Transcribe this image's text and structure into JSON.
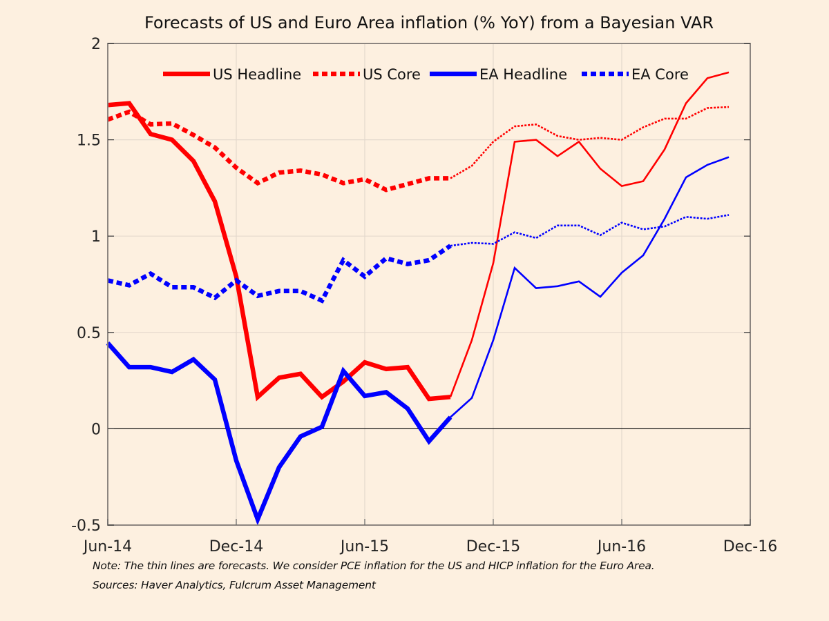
{
  "chart_data": {
    "type": "line",
    "title": "Forecasts of US and Euro Area inflation (% YoY) from a Bayesian VAR",
    "xlabel": "",
    "ylabel": "",
    "ylim": [
      -0.5,
      2
    ],
    "yticks": [
      -0.5,
      0,
      0.5,
      1,
      1.5,
      2
    ],
    "ytick_labels": [
      "-0.5",
      "0",
      "0.5",
      "1",
      "1.5",
      "2"
    ],
    "xlim_months": [
      0,
      30
    ],
    "xticks": [
      0,
      6,
      12,
      18,
      24,
      30
    ],
    "xtick_labels": [
      "Jun-14",
      "Dec-14",
      "Jun-15",
      "Dec-15",
      "Jun-16",
      "Dec-16"
    ],
    "grid": true,
    "zero_line": true,
    "legend_position": "top",
    "x": [
      "Jun-14",
      "Jul-14",
      "Aug-14",
      "Sep-14",
      "Oct-14",
      "Nov-14",
      "Dec-14",
      "Jan-15",
      "Feb-15",
      "Mar-15",
      "Apr-15",
      "May-15",
      "Jun-15",
      "Jul-15",
      "Aug-15",
      "Sep-15",
      "Oct-15",
      "Nov-15",
      "Dec-15",
      "Jan-16",
      "Feb-16",
      "Mar-16",
      "Apr-16",
      "May-16",
      "Jun-16",
      "Jul-16",
      "Aug-16",
      "Sep-16",
      "Oct-16",
      "Nov-16"
    ],
    "forecast_start_index": 16,
    "series": [
      {
        "name": "US Headline",
        "color": "#ff0000",
        "style": "solid",
        "values": [
          1.68,
          1.69,
          1.53,
          1.5,
          1.39,
          1.18,
          0.79,
          0.165,
          0.265,
          0.285,
          0.165,
          0.245,
          0.345,
          0.31,
          0.32,
          0.155,
          0.165,
          0.46,
          0.86,
          1.49,
          1.5,
          1.415,
          1.49,
          1.35,
          1.26,
          1.285,
          1.45,
          1.69,
          1.82,
          1.85
        ]
      },
      {
        "name": "US Core",
        "color": "#ff0000",
        "style": "dotted",
        "values": [
          1.605,
          1.645,
          1.58,
          1.585,
          1.525,
          1.46,
          1.355,
          1.275,
          1.33,
          1.34,
          1.32,
          1.275,
          1.295,
          1.24,
          1.27,
          1.3,
          1.3,
          1.365,
          1.49,
          1.57,
          1.58,
          1.52,
          1.5,
          1.51,
          1.5,
          1.565,
          1.61,
          1.61,
          1.665,
          1.67
        ]
      },
      {
        "name": "EA Headline",
        "color": "#0000ff",
        "style": "solid",
        "values": [
          0.445,
          0.32,
          0.32,
          0.295,
          0.36,
          0.255,
          -0.165,
          -0.47,
          -0.2,
          -0.04,
          0.01,
          0.3,
          0.17,
          0.19,
          0.105,
          -0.065,
          0.06,
          0.16,
          0.46,
          0.835,
          0.73,
          0.74,
          0.765,
          0.685,
          0.81,
          0.9,
          1.09,
          1.305,
          1.37,
          1.41
        ]
      },
      {
        "name": "EA Core",
        "color": "#0000ff",
        "style": "dotted",
        "values": [
          0.77,
          0.745,
          0.805,
          0.735,
          0.735,
          0.68,
          0.77,
          0.69,
          0.715,
          0.715,
          0.665,
          0.875,
          0.79,
          0.885,
          0.855,
          0.875,
          0.95,
          0.965,
          0.96,
          1.02,
          0.99,
          1.055,
          1.055,
          1.005,
          1.07,
          1.035,
          1.05,
          1.1,
          1.09,
          1.11
        ]
      }
    ],
    "annotations": [
      "Note: The thin lines are forecasts. We consider PCE inflation for the US and HICP inflation for the Euro Area.",
      "Sources: Haver Analytics, Fulcrum Asset Management"
    ]
  },
  "colors": {
    "background": "#fdf0e0",
    "axis": "#8c8580",
    "grid": "#e3d8cc",
    "zero_line": "#111111"
  }
}
